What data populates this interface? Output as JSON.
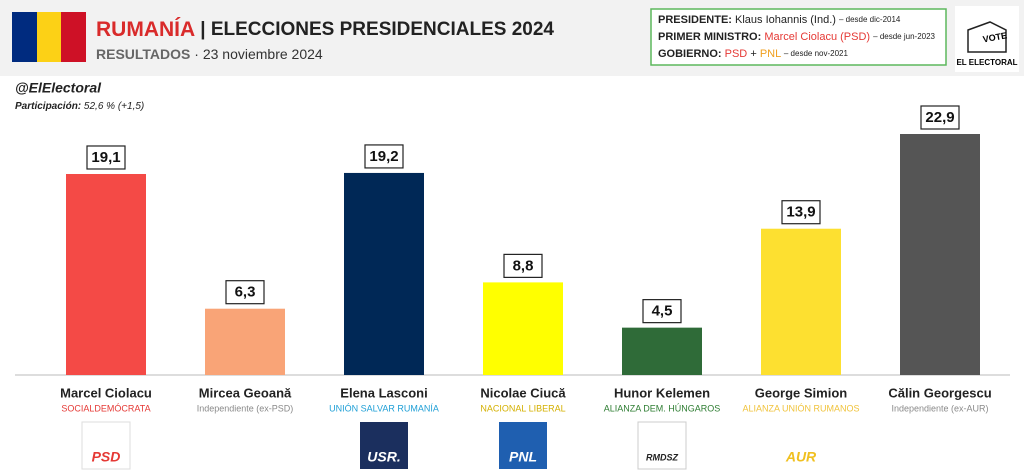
{
  "header": {
    "country": "RUMANÍA",
    "title": "| ELECCIONES PRESIDENCIALES 2024",
    "subtitle": "RESULTADOS",
    "date": "· 23 noviembre 2024",
    "handle": "@ElElectoral",
    "turnout_label": "Participación:",
    "turnout": "52,6 % (+1,5)"
  },
  "info": {
    "president_label": "PRESIDENTE:",
    "president": "Klaus Iohannis (Ind.)",
    "president_since": "– desde dic-2014",
    "pm_label": "PRIMER MINISTRO:",
    "pm": "Marcel Ciolacu (PSD)",
    "pm_since": "– desde jun-2023",
    "gov_label": "GOBIERNO:",
    "gov_party1": "PSD",
    "gov_plus": "+",
    "gov_party2": "PNL",
    "gov_since": "– desde nov-2021"
  },
  "brand": {
    "vote": "VOTE",
    "name": "EL ELECTORAL"
  },
  "chart_data": {
    "type": "bar",
    "categories": [
      "Marcel Ciolacu",
      "Mircea Geoană",
      "Elena Lasconi",
      "Nicolae Ciucă",
      "Hunor Kelemen",
      "George Simion",
      "Călin Georgescu"
    ],
    "subtitles": [
      "SOCIALDEMÓCRATA",
      "Independiente (ex-PSD)",
      "UNIÓN SALVAR RUMANÍA",
      "NACIONAL LIBERAL",
      "ALIANZA DEM. HÚNGAROS",
      "ALIANZA UNIÓN RUMANOS",
      "Independiente (ex-AUR)"
    ],
    "subtitle_colors": [
      "#e53935",
      "#8a8a8a",
      "#1f9fd6",
      "#d4b000",
      "#2e7d32",
      "#f0c33c",
      "#8a8a8a"
    ],
    "values": [
      19.1,
      6.3,
      19.2,
      8.8,
      4.5,
      13.9,
      22.9
    ],
    "value_labels": [
      "19,1",
      "6,3",
      "19,2",
      "8,8",
      "4,5",
      "13,9",
      "22,9"
    ],
    "colors": [
      "#f44a46",
      "#f9a477",
      "#002856",
      "#ffff00",
      "#2f6b38",
      "#fde030",
      "#555555"
    ],
    "logos": [
      "PSD",
      null,
      "USR.",
      "PNL",
      "RMDSZ",
      "AUR",
      null
    ]
  }
}
